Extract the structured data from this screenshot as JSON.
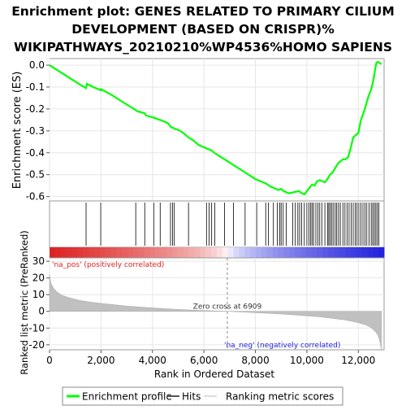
{
  "chart_data": {
    "type": "line",
    "title_lines": [
      "Enrichment plot: GENES RELATED TO PRIMARY CILIUM",
      "DEVELOPMENT (BASED ON CRISPR)%",
      "WIKIPATHWAYS_20210210%WP4536%HOMO SAPIENS"
    ],
    "xlabel": "Rank in Ordered Dataset",
    "es_panel": {
      "ylabel": "Enrichment score (ES)",
      "ylim": [
        -0.62,
        0.03
      ],
      "yticks": [
        0.0,
        -0.1,
        -0.2,
        -0.3,
        -0.4,
        -0.5,
        -0.6
      ],
      "ytick_labels": [
        "0.0",
        "-0.1",
        "-0.2",
        "-0.3",
        "-0.4",
        "-0.5",
        "-0.6"
      ],
      "series": [
        {
          "name": "Enrichment profile",
          "color": "#00ff00",
          "x": [
            0,
            600,
            1200,
            1420,
            1450,
            1700,
            1990,
            2000,
            2400,
            2800,
            3000,
            3350,
            3400,
            3700,
            3750,
            4050,
            4300,
            4600,
            4700,
            4750,
            4800,
            4850,
            5000,
            5200,
            5400,
            5600,
            5800,
            6000,
            6100,
            6200,
            6300,
            6400,
            6800,
            7200,
            7600,
            8000,
            8400,
            8600,
            8800,
            8900,
            9000,
            9100,
            9300,
            9500,
            9700,
            9800,
            9900,
            10000,
            10100,
            10200,
            10300,
            10400,
            10500,
            10600,
            10700,
            10800,
            10900,
            11000,
            11100,
            11200,
            11300,
            11400,
            11500,
            11600,
            11700,
            11800,
            11900,
            12000,
            12100,
            12200,
            12300,
            12400,
            12500,
            12600,
            12650,
            12700,
            12750,
            12900
          ],
          "y": [
            0.0,
            -0.045,
            -0.09,
            -0.105,
            -0.085,
            -0.1,
            -0.115,
            -0.11,
            -0.135,
            -0.165,
            -0.18,
            -0.205,
            -0.21,
            -0.22,
            -0.23,
            -0.24,
            -0.25,
            -0.265,
            -0.28,
            -0.285,
            -0.285,
            -0.29,
            -0.295,
            -0.31,
            -0.33,
            -0.345,
            -0.365,
            -0.375,
            -0.38,
            -0.385,
            -0.39,
            -0.4,
            -0.43,
            -0.46,
            -0.49,
            -0.52,
            -0.54,
            -0.555,
            -0.565,
            -0.57,
            -0.565,
            -0.575,
            -0.585,
            -0.58,
            -0.575,
            -0.585,
            -0.59,
            -0.575,
            -0.56,
            -0.545,
            -0.55,
            -0.53,
            -0.525,
            -0.53,
            -0.535,
            -0.52,
            -0.5,
            -0.49,
            -0.47,
            -0.45,
            -0.44,
            -0.43,
            -0.43,
            -0.42,
            -0.38,
            -0.33,
            -0.32,
            -0.31,
            -0.25,
            -0.22,
            -0.18,
            -0.14,
            -0.11,
            -0.06,
            -0.02,
            0.01,
            0.015,
            0.005
          ]
        }
      ]
    },
    "hits_panel": {
      "series_name": "Hits",
      "hit_ranks": [
        1420,
        1990,
        3350,
        3700,
        4050,
        4300,
        4700,
        4780,
        4850,
        5400,
        6100,
        6200,
        6300,
        6420,
        6800,
        7150,
        7600,
        8050,
        8400,
        8500,
        8700,
        8850,
        8950,
        9000,
        9080,
        9200,
        9450,
        9550,
        9650,
        9720,
        9800,
        9900,
        10000,
        10080,
        10150,
        10200,
        10260,
        10350,
        10430,
        10500,
        10580,
        10700,
        10800,
        10850,
        10900,
        10960,
        11020,
        11100,
        11160,
        11230,
        11300,
        11400,
        11480,
        11560,
        11640,
        11720,
        11800,
        11880,
        11950,
        12020,
        12100,
        12180,
        12260,
        12330,
        12420,
        12500,
        12560,
        12620,
        12680,
        12740,
        12800
      ]
    },
    "ranked_list_panel": {
      "ylabel": "Ranked list metric (PreRanked)",
      "series_name": "Ranking metric scores",
      "ylim": [
        -23,
        32
      ],
      "yticks": [
        30,
        20,
        10,
        0,
        -10,
        -20
      ],
      "ytick_labels": [
        "30",
        "20",
        "10",
        "0",
        "-10",
        "-20"
      ],
      "metric_profile": {
        "x": [
          0,
          50,
          150,
          300,
          500,
          800,
          1200,
          1600,
          2000,
          2500,
          3000,
          3500,
          4000,
          4500,
          5000,
          5500,
          6000,
          6500,
          6909,
          7500,
          8000,
          8500,
          9000,
          9500,
          10000,
          10500,
          11000,
          11500,
          12000,
          12300,
          12500,
          12650,
          12750,
          12800,
          12850,
          12900
        ],
        "y": [
          22,
          17,
          14,
          11.5,
          9.5,
          8,
          6.5,
          5.5,
          4.8,
          4,
          3.2,
          2.6,
          2.1,
          1.6,
          1.2,
          0.8,
          0.5,
          0.2,
          0,
          -0.4,
          -0.8,
          -1.2,
          -1.6,
          -2.1,
          -2.7,
          -3.3,
          -4.2,
          -5.2,
          -6.8,
          -8.2,
          -9.8,
          -12,
          -14,
          -16,
          -19,
          -23
        ]
      },
      "zero_cross_label": "Zero cross at 6909",
      "zero_cross": 6909,
      "pos_label": "'na_pos' (positively correlated)",
      "neg_label": "'na_neg' (negatively correlated)",
      "pos_color": "#dd2222",
      "neg_color": "#2222dd"
    },
    "xlim": [
      0,
      13000
    ],
    "xticks": [
      0,
      2000,
      4000,
      6000,
      8000,
      10000,
      12000
    ],
    "xtick_labels": [
      "0",
      "2,000",
      "4,000",
      "6,000",
      "8,000",
      "10,000",
      "12,000"
    ],
    "legend": {
      "placement": "bottom",
      "entries": [
        "Enrichment profile",
        "Hits",
        "Ranking metric scores"
      ],
      "colors": [
        "#00ff00",
        "#555555",
        "#dddddd"
      ]
    }
  }
}
